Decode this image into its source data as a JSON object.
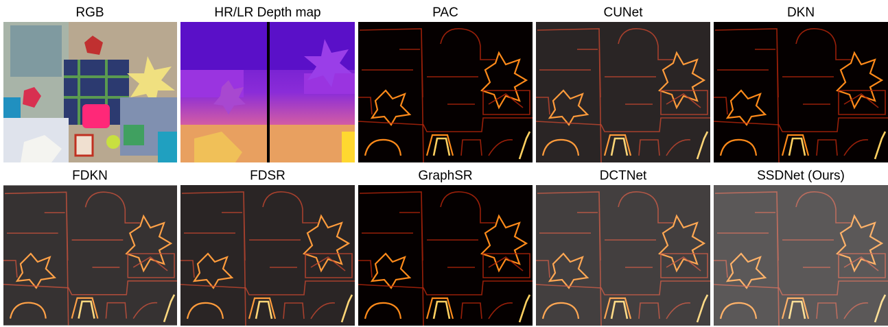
{
  "panels": [
    {
      "label": "RGB"
    },
    {
      "label": "HR/LR Depth map"
    },
    {
      "label": "PAC"
    },
    {
      "label": "CUNet"
    },
    {
      "label": "DKN"
    },
    {
      "label": "FDKN"
    },
    {
      "label": "FDSR"
    },
    {
      "label": "GraphSR"
    },
    {
      "label": "DCTNet"
    },
    {
      "label": "SSDNet (Ours)"
    }
  ]
}
